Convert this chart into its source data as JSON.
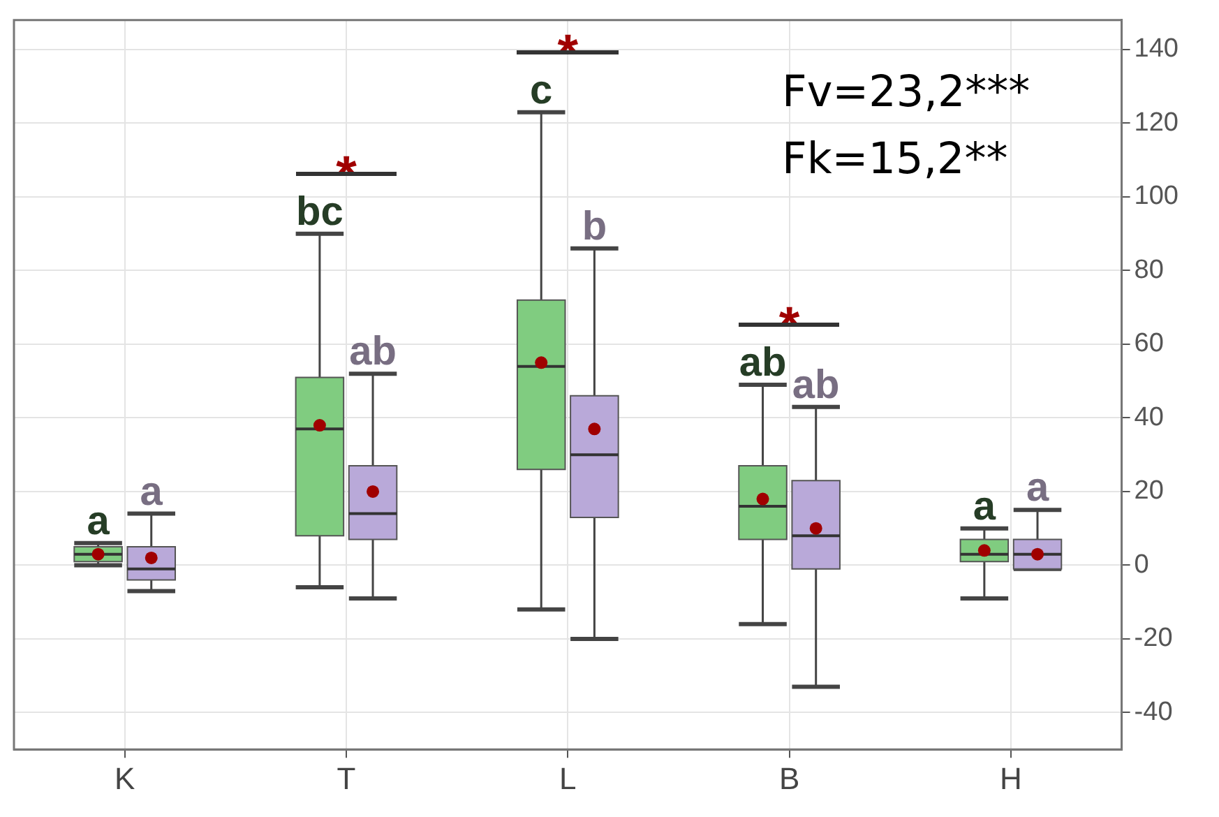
{
  "chart_data": {
    "type": "box",
    "categories": [
      "K",
      "T",
      "L",
      "B",
      "H"
    ],
    "series": [
      {
        "color": "#80cc80",
        "boxes": [
          {
            "low": 0,
            "q1": 1,
            "median": 3,
            "q3": 5,
            "high": 6,
            "mean": 3
          },
          {
            "low": -6,
            "q1": 8,
            "median": 37,
            "q3": 51,
            "high": 90,
            "mean": 38
          },
          {
            "low": -12,
            "q1": 26,
            "median": 54,
            "q3": 72,
            "high": 123,
            "mean": 55
          },
          {
            "low": -16,
            "q1": 7,
            "median": 16,
            "q3": 27,
            "high": 49,
            "mean": 18
          },
          {
            "low": -9,
            "q1": 1,
            "median": 3,
            "q3": 7,
            "high": 10,
            "mean": 4
          }
        ]
      },
      {
        "color": "#b9a9d9",
        "boxes": [
          {
            "low": -7,
            "q1": -4,
            "median": -1,
            "q3": 5,
            "high": 14,
            "mean": 2
          },
          {
            "low": -9,
            "q1": 7,
            "median": 14,
            "q3": 27,
            "high": 52,
            "mean": 20
          },
          {
            "low": -20,
            "q1": 13,
            "median": 30,
            "q3": 46,
            "high": 86,
            "mean": 37
          },
          {
            "low": -33,
            "q1": -1,
            "median": 8,
            "q3": 23,
            "high": 43,
            "mean": 10
          },
          {
            "low": -1,
            "q1": -1,
            "median": 3,
            "q3": 7,
            "high": 15,
            "mean": 3
          }
        ]
      }
    ],
    "ylim": [
      -50,
      148
    ],
    "yticks": [
      -40,
      -20,
      0,
      20,
      40,
      60,
      80,
      100,
      120,
      140
    ],
    "grid": true,
    "annotations": [
      {
        "text": "a",
        "x": "K",
        "y": 6
      },
      {
        "text": "a",
        "x": "K",
        "y": 14
      },
      {
        "text": "bc",
        "x": "T",
        "y": 90
      },
      {
        "text": "ab",
        "x": "T",
        "y": 52
      },
      {
        "text": "c",
        "x": "L",
        "y": 123
      },
      {
        "text": "b",
        "x": "L",
        "y": 86
      },
      {
        "text": "ab",
        "x": "B",
        "y": 49
      },
      {
        "text": "ab",
        "x": "B",
        "y": 43
      },
      {
        "text": "a",
        "x": "H",
        "y": 10
      },
      {
        "text": "a",
        "x": "H",
        "y": 15
      },
      {
        "text": "*",
        "x": "T",
        "y": 90
      },
      {
        "text": "*",
        "x": "L",
        "y": 123
      },
      {
        "text": "*",
        "x": "B",
        "y": 49
      },
      "Fv=23,2***",
      "Fk=15,2**"
    ]
  }
}
